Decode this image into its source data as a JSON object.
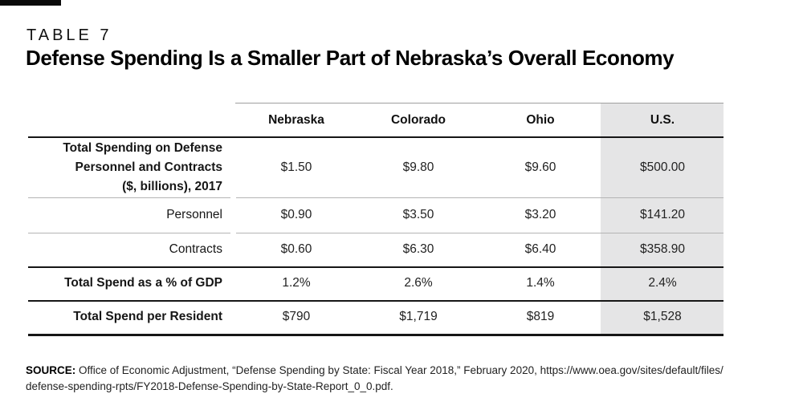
{
  "header": {
    "table_label": "TABLE 7",
    "title": "Defense Spending Is a Smaller Part of Nebraska’s Overall Economy"
  },
  "table": {
    "columns": [
      "Nebraska",
      "Colorado",
      "Ohio",
      "U.S."
    ],
    "highlight_column": "U.S.",
    "rows": [
      {
        "label": "Total Spending on Defense Personnel and Contracts ($, billions), 2017",
        "label_lines": [
          "Total Spending on Defense",
          "Personnel and Contracts",
          "($, billions), 2017"
        ],
        "bold_label": true,
        "values": [
          "$1.50",
          "$9.80",
          "$9.60",
          "$500.00"
        ]
      },
      {
        "label": "Personnel",
        "bold_label": false,
        "values": [
          "$0.90",
          "$3.50",
          "$3.20",
          "$141.20"
        ]
      },
      {
        "label": "Contracts",
        "bold_label": false,
        "values": [
          "$0.60",
          "$6.30",
          "$6.40",
          "$358.90"
        ]
      },
      {
        "label": "Total Spend as a % of GDP",
        "bold_label": true,
        "values": [
          "1.2%",
          "2.6%",
          "1.4%",
          "2.4%"
        ]
      },
      {
        "label": "Total Spend per Resident",
        "bold_label": true,
        "values": [
          "$790",
          "$1,719",
          "$819",
          "$1,528"
        ]
      }
    ]
  },
  "source": {
    "label": "SOURCE:",
    "line1": " Office of Economic Adjustment, “Defense Spending by State: Fiscal Year 2018,” February 2020, https://www.oea.gov/sites/default/files/",
    "line2": "defense-spending-rpts/FY2018-Defense-Spending-by-State-Report_0_0.pdf."
  },
  "colors": {
    "highlight_bg": "#e5e5e6",
    "rule_black": "#161616",
    "rule_gray": "#b4b4b4",
    "accent_bar": "#0a0a0a",
    "text": "#1c1c1c"
  },
  "chart_data": {
    "type": "table",
    "title": "Defense Spending Is a Smaller Part of Nebraska’s Overall Economy",
    "columns": [
      "Nebraska",
      "Colorado",
      "Ohio",
      "U.S."
    ],
    "rows": [
      {
        "label": "Total Spending on Defense Personnel and Contracts ($, billions), 2017",
        "unit": "$ billions",
        "values": [
          1.5,
          9.8,
          9.6,
          500.0
        ]
      },
      {
        "label": "Personnel",
        "unit": "$ billions",
        "values": [
          0.9,
          3.5,
          3.2,
          141.2
        ]
      },
      {
        "label": "Contracts",
        "unit": "$ billions",
        "values": [
          0.6,
          6.3,
          6.4,
          358.9
        ]
      },
      {
        "label": "Total Spend as a % of GDP",
        "unit": "%",
        "values": [
          1.2,
          2.6,
          1.4,
          2.4
        ]
      },
      {
        "label": "Total Spend per Resident",
        "unit": "$",
        "values": [
          790,
          1719,
          819,
          1528
        ]
      }
    ]
  }
}
